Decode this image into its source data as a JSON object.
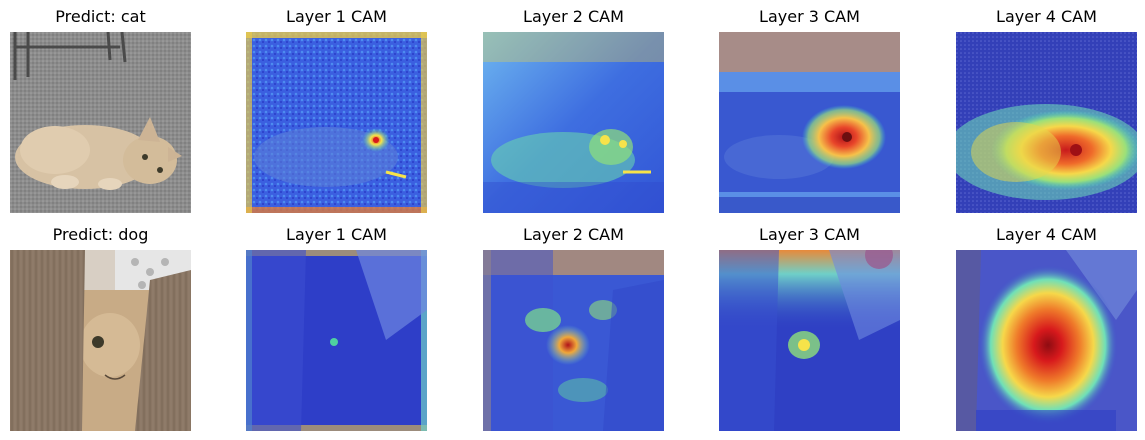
{
  "figure": {
    "rows": [
      {
        "panels": [
          {
            "title": "Predict: cat"
          },
          {
            "title": "Layer 1 CAM"
          },
          {
            "title": "Layer 2 CAM"
          },
          {
            "title": "Layer 3 CAM"
          },
          {
            "title": "Layer 4 CAM"
          }
        ]
      },
      {
        "panels": [
          {
            "title": "Predict: dog"
          },
          {
            "title": "Layer 1 CAM"
          },
          {
            "title": "Layer 2 CAM"
          },
          {
            "title": "Layer 3 CAM"
          },
          {
            "title": "Layer 4 CAM"
          }
        ]
      }
    ]
  },
  "colors": {
    "cam_low": "#2a2fd0",
    "cam_mid": "#3fd0c8",
    "cam_high": "#f6e34a",
    "cam_peak": "#d7191c"
  }
}
